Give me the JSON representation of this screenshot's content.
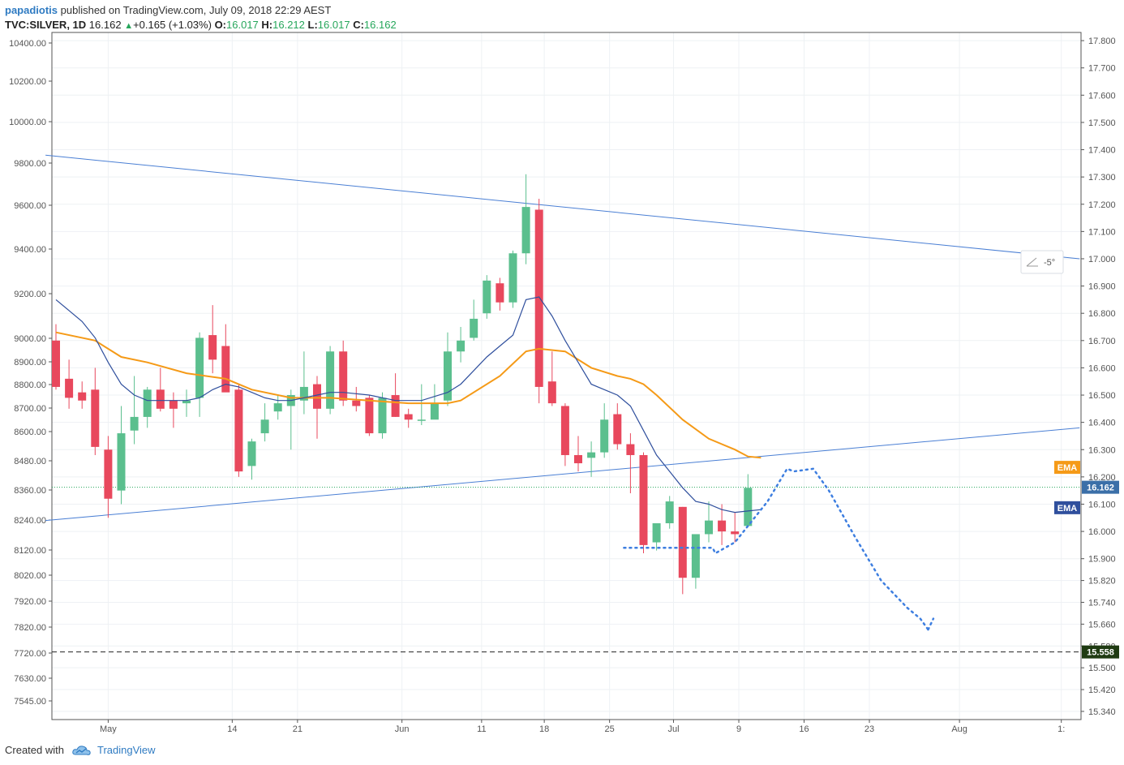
{
  "header": {
    "author": "papadiotis",
    "published_text": " published on TradingView.com, July 09, 2018 22:29 AEST",
    "symbol": "TVC:SILVER, 1D",
    "last": "16.162",
    "change": "+0.165 (+1.03%)",
    "o_label": "O:",
    "o_value": "16.017",
    "h_label": "H:",
    "h_value": "16.212",
    "l_label": "L:",
    "l_value": "16.017",
    "c_label": "C:",
    "c_value": "16.162",
    "up_arrow": "▲"
  },
  "footer": {
    "created_with": "Created with",
    "brand": "TradingView",
    "logo_icon": "tradingview-cloud-icon"
  },
  "colors": {
    "up": "#5bbf8e",
    "down": "#e8485d",
    "ema_orange": "#f59a17",
    "ema_blue": "#2f4f9d",
    "trendline": "#4a7fd4",
    "dotted_projection": "#3d7ee0",
    "last_price_line": "#26a65b",
    "level_line": "#222222",
    "level_tag_bg": "#1f3b12",
    "last_tag_bg": "#3b6fa8"
  },
  "chart_data": {
    "type": "candlestick",
    "symbol": "TVC:SILVER",
    "interval": "1D",
    "left_axis_ticks": [
      "10400.00",
      "10200.00",
      "10000.00",
      "9800.00",
      "9600.00",
      "9400.00",
      "9200.00",
      "9000.00",
      "8900.00",
      "8800.00",
      "8700.00",
      "8600.00",
      "8480.00",
      "8360.00",
      "8240.00",
      "8120.00",
      "8020.00",
      "7920.00",
      "7820.00",
      "7720.00",
      "7630.00",
      "7545.00"
    ],
    "right_axis_ticks": [
      "17.800",
      "17.700",
      "17.600",
      "17.500",
      "17.400",
      "17.300",
      "17.200",
      "17.100",
      "17.000",
      "16.900",
      "16.800",
      "16.700",
      "16.600",
      "16.500",
      "16.400",
      "16.300",
      "16.200",
      "16.100",
      "16.000",
      "15.900",
      "15.820",
      "15.740",
      "15.660",
      "15.580",
      "15.500",
      "15.420",
      "15.340"
    ],
    "y_range": [
      15.31,
      17.83
    ],
    "x_tick_labels": [
      "May",
      "14",
      "21",
      "Jun",
      "11",
      "18",
      "25",
      "Jul",
      "9",
      "16",
      "23",
      "Aug",
      "1:"
    ],
    "x_tick_bars": [
      4.0,
      13.5,
      18.5,
      26.5,
      32.6,
      37.4,
      42.4,
      47.3,
      52.3,
      57.3,
      62.3,
      69.2,
      77.0
    ],
    "candles": [
      {
        "o": 16.7,
        "h": 16.76,
        "l": 16.52,
        "c": 16.53
      },
      {
        "o": 16.56,
        "h": 16.63,
        "l": 16.45,
        "c": 16.49
      },
      {
        "o": 16.51,
        "h": 16.55,
        "l": 16.45,
        "c": 16.48
      },
      {
        "o": 16.52,
        "h": 16.6,
        "l": 16.28,
        "c": 16.31
      },
      {
        "o": 16.3,
        "h": 16.35,
        "l": 16.05,
        "c": 16.12
      },
      {
        "o": 16.15,
        "h": 16.46,
        "l": 16.1,
        "c": 16.36
      },
      {
        "o": 16.37,
        "h": 16.57,
        "l": 16.32,
        "c": 16.42
      },
      {
        "o": 16.42,
        "h": 16.53,
        "l": 16.38,
        "c": 16.52
      },
      {
        "o": 16.52,
        "h": 16.6,
        "l": 16.44,
        "c": 16.45
      },
      {
        "o": 16.48,
        "h": 16.51,
        "l": 16.38,
        "c": 16.45
      },
      {
        "o": 16.47,
        "h": 16.52,
        "l": 16.42,
        "c": 16.48
      },
      {
        "o": 16.49,
        "h": 16.73,
        "l": 16.42,
        "c": 16.71
      },
      {
        "o": 16.72,
        "h": 16.83,
        "l": 16.58,
        "c": 16.63
      },
      {
        "o": 16.68,
        "h": 16.76,
        "l": 16.52,
        "c": 16.51
      },
      {
        "o": 16.52,
        "h": 16.54,
        "l": 16.2,
        "c": 16.22
      },
      {
        "o": 16.24,
        "h": 16.34,
        "l": 16.19,
        "c": 16.33
      },
      {
        "o": 16.36,
        "h": 16.47,
        "l": 16.33,
        "c": 16.41
      },
      {
        "o": 16.44,
        "h": 16.5,
        "l": 16.41,
        "c": 16.47
      },
      {
        "o": 16.46,
        "h": 16.52,
        "l": 16.3,
        "c": 16.5
      },
      {
        "o": 16.48,
        "h": 16.66,
        "l": 16.43,
        "c": 16.53
      },
      {
        "o": 16.54,
        "h": 16.57,
        "l": 16.34,
        "c": 16.45
      },
      {
        "o": 16.45,
        "h": 16.68,
        "l": 16.43,
        "c": 16.66
      },
      {
        "o": 16.66,
        "h": 16.7,
        "l": 16.46,
        "c": 16.48
      },
      {
        "o": 16.48,
        "h": 16.53,
        "l": 16.44,
        "c": 16.46
      },
      {
        "o": 16.49,
        "h": 16.5,
        "l": 16.35,
        "c": 16.36
      },
      {
        "o": 16.36,
        "h": 16.51,
        "l": 16.34,
        "c": 16.49
      },
      {
        "o": 16.5,
        "h": 16.58,
        "l": 16.42,
        "c": 16.42
      },
      {
        "o": 16.43,
        "h": 16.45,
        "l": 16.38,
        "c": 16.41
      },
      {
        "o": 16.41,
        "h": 16.54,
        "l": 16.39,
        "c": 16.41
      },
      {
        "o": 16.41,
        "h": 16.54,
        "l": 16.42,
        "c": 16.47
      },
      {
        "o": 16.48,
        "h": 16.73,
        "l": 16.46,
        "c": 16.66
      },
      {
        "o": 16.66,
        "h": 16.75,
        "l": 16.62,
        "c": 16.7
      },
      {
        "o": 16.71,
        "h": 16.85,
        "l": 16.7,
        "c": 16.78
      },
      {
        "o": 16.8,
        "h": 16.94,
        "l": 16.78,
        "c": 16.92
      },
      {
        "o": 16.91,
        "h": 16.93,
        "l": 16.81,
        "c": 16.84
      },
      {
        "o": 16.84,
        "h": 17.03,
        "l": 16.82,
        "c": 17.02
      },
      {
        "o": 17.02,
        "h": 17.31,
        "l": 16.98,
        "c": 17.19
      },
      {
        "o": 17.18,
        "h": 17.22,
        "l": 16.47,
        "c": 16.53
      },
      {
        "o": 16.55,
        "h": 16.66,
        "l": 16.46,
        "c": 16.47
      },
      {
        "o": 16.46,
        "h": 16.47,
        "l": 16.24,
        "c": 16.28
      },
      {
        "o": 16.28,
        "h": 16.35,
        "l": 16.22,
        "c": 16.25
      },
      {
        "o": 16.27,
        "h": 16.33,
        "l": 16.2,
        "c": 16.29
      },
      {
        "o": 16.29,
        "h": 16.47,
        "l": 16.27,
        "c": 16.41
      },
      {
        "o": 16.43,
        "h": 16.47,
        "l": 16.3,
        "c": 16.32
      },
      {
        "o": 16.32,
        "h": 16.36,
        "l": 16.14,
        "c": 16.28
      },
      {
        "o": 16.28,
        "h": 16.29,
        "l": 15.92,
        "c": 15.95
      },
      {
        "o": 15.96,
        "h": 16.02,
        "l": 15.93,
        "c": 16.03
      },
      {
        "o": 16.03,
        "h": 16.13,
        "l": 16.01,
        "c": 16.11
      },
      {
        "o": 16.09,
        "h": 16.09,
        "l": 15.77,
        "c": 15.83
      },
      {
        "o": 15.83,
        "h": 15.98,
        "l": 15.79,
        "c": 15.99
      },
      {
        "o": 15.99,
        "h": 16.11,
        "l": 15.96,
        "c": 16.04
      },
      {
        "o": 16.04,
        "h": 16.1,
        "l": 15.95,
        "c": 16.0
      },
      {
        "o": 16.0,
        "h": 16.07,
        "l": 15.96,
        "c": 15.99
      },
      {
        "o": 16.02,
        "h": 16.21,
        "l": 16.02,
        "c": 16.16
      }
    ],
    "ema_orange": [
      [
        0,
        16.73
      ],
      [
        3,
        16.7
      ],
      [
        5,
        16.64
      ],
      [
        7,
        16.62
      ],
      [
        10,
        16.58
      ],
      [
        13,
        16.56
      ],
      [
        15,
        16.52
      ],
      [
        18,
        16.49
      ],
      [
        21,
        16.49
      ],
      [
        24,
        16.48
      ],
      [
        27,
        16.47
      ],
      [
        30,
        16.47
      ],
      [
        31,
        16.48
      ],
      [
        34,
        16.57
      ],
      [
        36,
        16.66
      ],
      [
        37,
        16.67
      ],
      [
        39,
        16.66
      ],
      [
        41,
        16.6
      ],
      [
        43,
        16.57
      ],
      [
        44,
        16.56
      ],
      [
        45,
        16.54
      ],
      [
        46,
        16.5
      ],
      [
        48,
        16.41
      ],
      [
        50,
        16.34
      ],
      [
        52,
        16.3
      ],
      [
        53,
        16.275
      ],
      [
        54,
        16.27
      ]
    ],
    "ema_blue": [
      [
        0,
        16.85
      ],
      [
        1,
        16.81
      ],
      [
        2,
        16.77
      ],
      [
        3,
        16.71
      ],
      [
        4,
        16.62
      ],
      [
        5,
        16.54
      ],
      [
        6,
        16.5
      ],
      [
        7,
        16.48
      ],
      [
        8,
        16.48
      ],
      [
        9,
        16.48
      ],
      [
        10,
        16.48
      ],
      [
        11,
        16.49
      ],
      [
        12,
        16.52
      ],
      [
        13,
        16.54
      ],
      [
        14,
        16.53
      ],
      [
        15,
        16.51
      ],
      [
        16,
        16.49
      ],
      [
        17,
        16.48
      ],
      [
        18,
        16.48
      ],
      [
        19,
        16.49
      ],
      [
        20,
        16.5
      ],
      [
        21,
        16.51
      ],
      [
        22,
        16.51
      ],
      [
        24,
        16.5
      ],
      [
        26,
        16.48
      ],
      [
        28,
        16.48
      ],
      [
        30,
        16.51
      ],
      [
        31,
        16.54
      ],
      [
        32,
        16.59
      ],
      [
        33,
        16.64
      ],
      [
        34,
        16.68
      ],
      [
        35,
        16.72
      ],
      [
        36,
        16.85
      ],
      [
        37,
        16.86
      ],
      [
        38,
        16.79
      ],
      [
        39,
        16.7
      ],
      [
        40,
        16.62
      ],
      [
        41,
        16.54
      ],
      [
        42,
        16.52
      ],
      [
        43,
        16.5
      ],
      [
        44,
        16.46
      ],
      [
        45,
        16.37
      ],
      [
        46,
        16.28
      ],
      [
        47,
        16.22
      ],
      [
        48,
        16.16
      ],
      [
        49,
        16.11
      ],
      [
        50,
        16.1
      ],
      [
        51,
        16.08
      ],
      [
        52,
        16.07
      ],
      [
        53,
        16.075
      ],
      [
        54,
        16.08
      ]
    ],
    "trendlines": [
      {
        "name": "upper-trendline",
        "from": [
          -0.8,
          17.38
        ],
        "to": [
          78.4,
          17.0
        ]
      },
      {
        "name": "lower-trendline",
        "from": [
          -0.8,
          16.04
        ],
        "to": [
          78.4,
          16.38
        ]
      }
    ],
    "projection_path": [
      [
        43.5,
        15.94
      ],
      [
        50.3,
        15.94
      ],
      [
        50.5,
        15.92
      ],
      [
        52.0,
        15.96
      ],
      [
        54.5,
        16.11
      ],
      [
        56.0,
        16.23
      ],
      [
        56.5,
        16.22
      ],
      [
        58.0,
        16.23
      ],
      [
        59.2,
        16.15
      ],
      [
        61.2,
        15.98
      ],
      [
        63.2,
        15.82
      ],
      [
        65.2,
        15.72
      ],
      [
        66.2,
        15.68
      ],
      [
        66.8,
        15.64
      ]
    ],
    "projection_tail": [
      [
        66.8,
        15.64
      ],
      [
        67.2,
        15.68
      ]
    ],
    "last_price": 16.162,
    "level_line": 15.558,
    "labels": {
      "ema_orange": "EMA",
      "ema_blue": "EMA",
      "last_price": "16.162",
      "level": "15.558",
      "angle": "-5°"
    },
    "legend": "none",
    "grid": true
  }
}
